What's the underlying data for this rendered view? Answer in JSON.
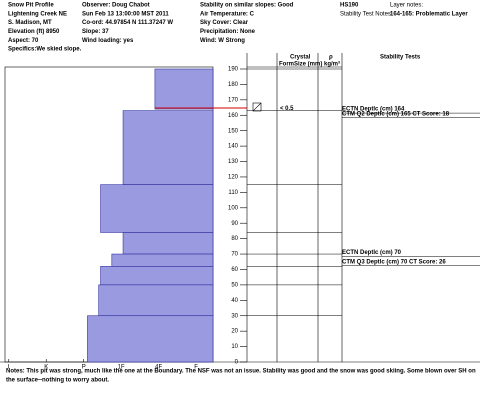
{
  "header": {
    "col1": [
      "Snow Pit Profile",
      "Lightening Creek  NE",
      "S. Madison, MT",
      "Elevation (ft)  8950",
      "Aspect:  70",
      "Specifics:We skied slope."
    ],
    "col2": [
      "Observer:  Doug Chabot",
      "Sun Feb 13 13:00:00 MST 2011",
      "Co-ord:  44.97854 N 111.37247 W",
      "Slope:  37",
      "Wind loading:  yes"
    ],
    "col3": [
      "Stability on similar slopes:  Good",
      "Air Temperature:  C",
      "Sky Cover:  Clear",
      "Precipitation:  None",
      "Wind:  W Strong"
    ],
    "hs": "HS190",
    "layer_notes_label": "Layer notes:",
    "stability_notes_label": "Stability Test Notes:",
    "layer_note": "164-165: Problematic Layer"
  },
  "columns": {
    "crystal": "Crystal",
    "form": "Form",
    "size": "Size (mm)",
    "rho": "ρ",
    "density_unit": "kg/m³",
    "stability": "Stability Tests"
  },
  "chart_data": {
    "type": "bar",
    "ylim": [
      0,
      190
    ],
    "yticks": [
      0,
      10,
      20,
      30,
      40,
      50,
      60,
      70,
      80,
      90,
      100,
      110,
      120,
      130,
      140,
      150,
      160,
      170,
      180,
      190
    ],
    "xlim": [
      0.9,
      6.45
    ],
    "xticks": [
      {
        "value": 1,
        "label": "I"
      },
      {
        "value": 2,
        "label": "K"
      },
      {
        "value": 3,
        "label": "P"
      },
      {
        "value": 4,
        "label": "1F"
      },
      {
        "value": 5,
        "label": "4F"
      },
      {
        "value": 6,
        "label": "F"
      }
    ],
    "color": "#9a9ae0",
    "layers": [
      {
        "top": 190,
        "bottom": 164,
        "hardness": 4.9
      },
      {
        "top": 163,
        "bottom": 115,
        "hardness": 4.05
      },
      {
        "top": 115,
        "bottom": 84,
        "hardness": 3.45
      },
      {
        "top": 84,
        "bottom": 70,
        "hardness": 4.05
      },
      {
        "top": 70,
        "bottom": 62,
        "hardness": 3.75
      },
      {
        "top": 62,
        "bottom": 50,
        "hardness": 3.45
      },
      {
        "top": 50,
        "bottom": 30,
        "hardness": 3.4
      },
      {
        "top": 30,
        "bottom": 0,
        "hardness": 3.1
      }
    ]
  },
  "crystal_rows": [
    {
      "height": 163,
      "size": "< 0.5"
    }
  ],
  "stability_tests": [
    {
      "height": 164,
      "text": "ECTN  Deptlc (cm) 164"
    },
    {
      "height": 161,
      "text": "CTM Q2 Deptlc (cm) 165 CT Score: 18"
    },
    {
      "height": 71,
      "text": "ECTN  Deptlc (cm) 70"
    },
    {
      "height": 65,
      "text": "CTM Q3 Deptlc (cm) 70 CT Score: 26"
    }
  ],
  "notes": [
    "Notes:  This pit was strong, much like the one at the Boundary.  The NSF was not an issue.  Stability was good and the snow was good skiing.  Some blown over SH on",
    "the surface--nothing to worry about."
  ]
}
